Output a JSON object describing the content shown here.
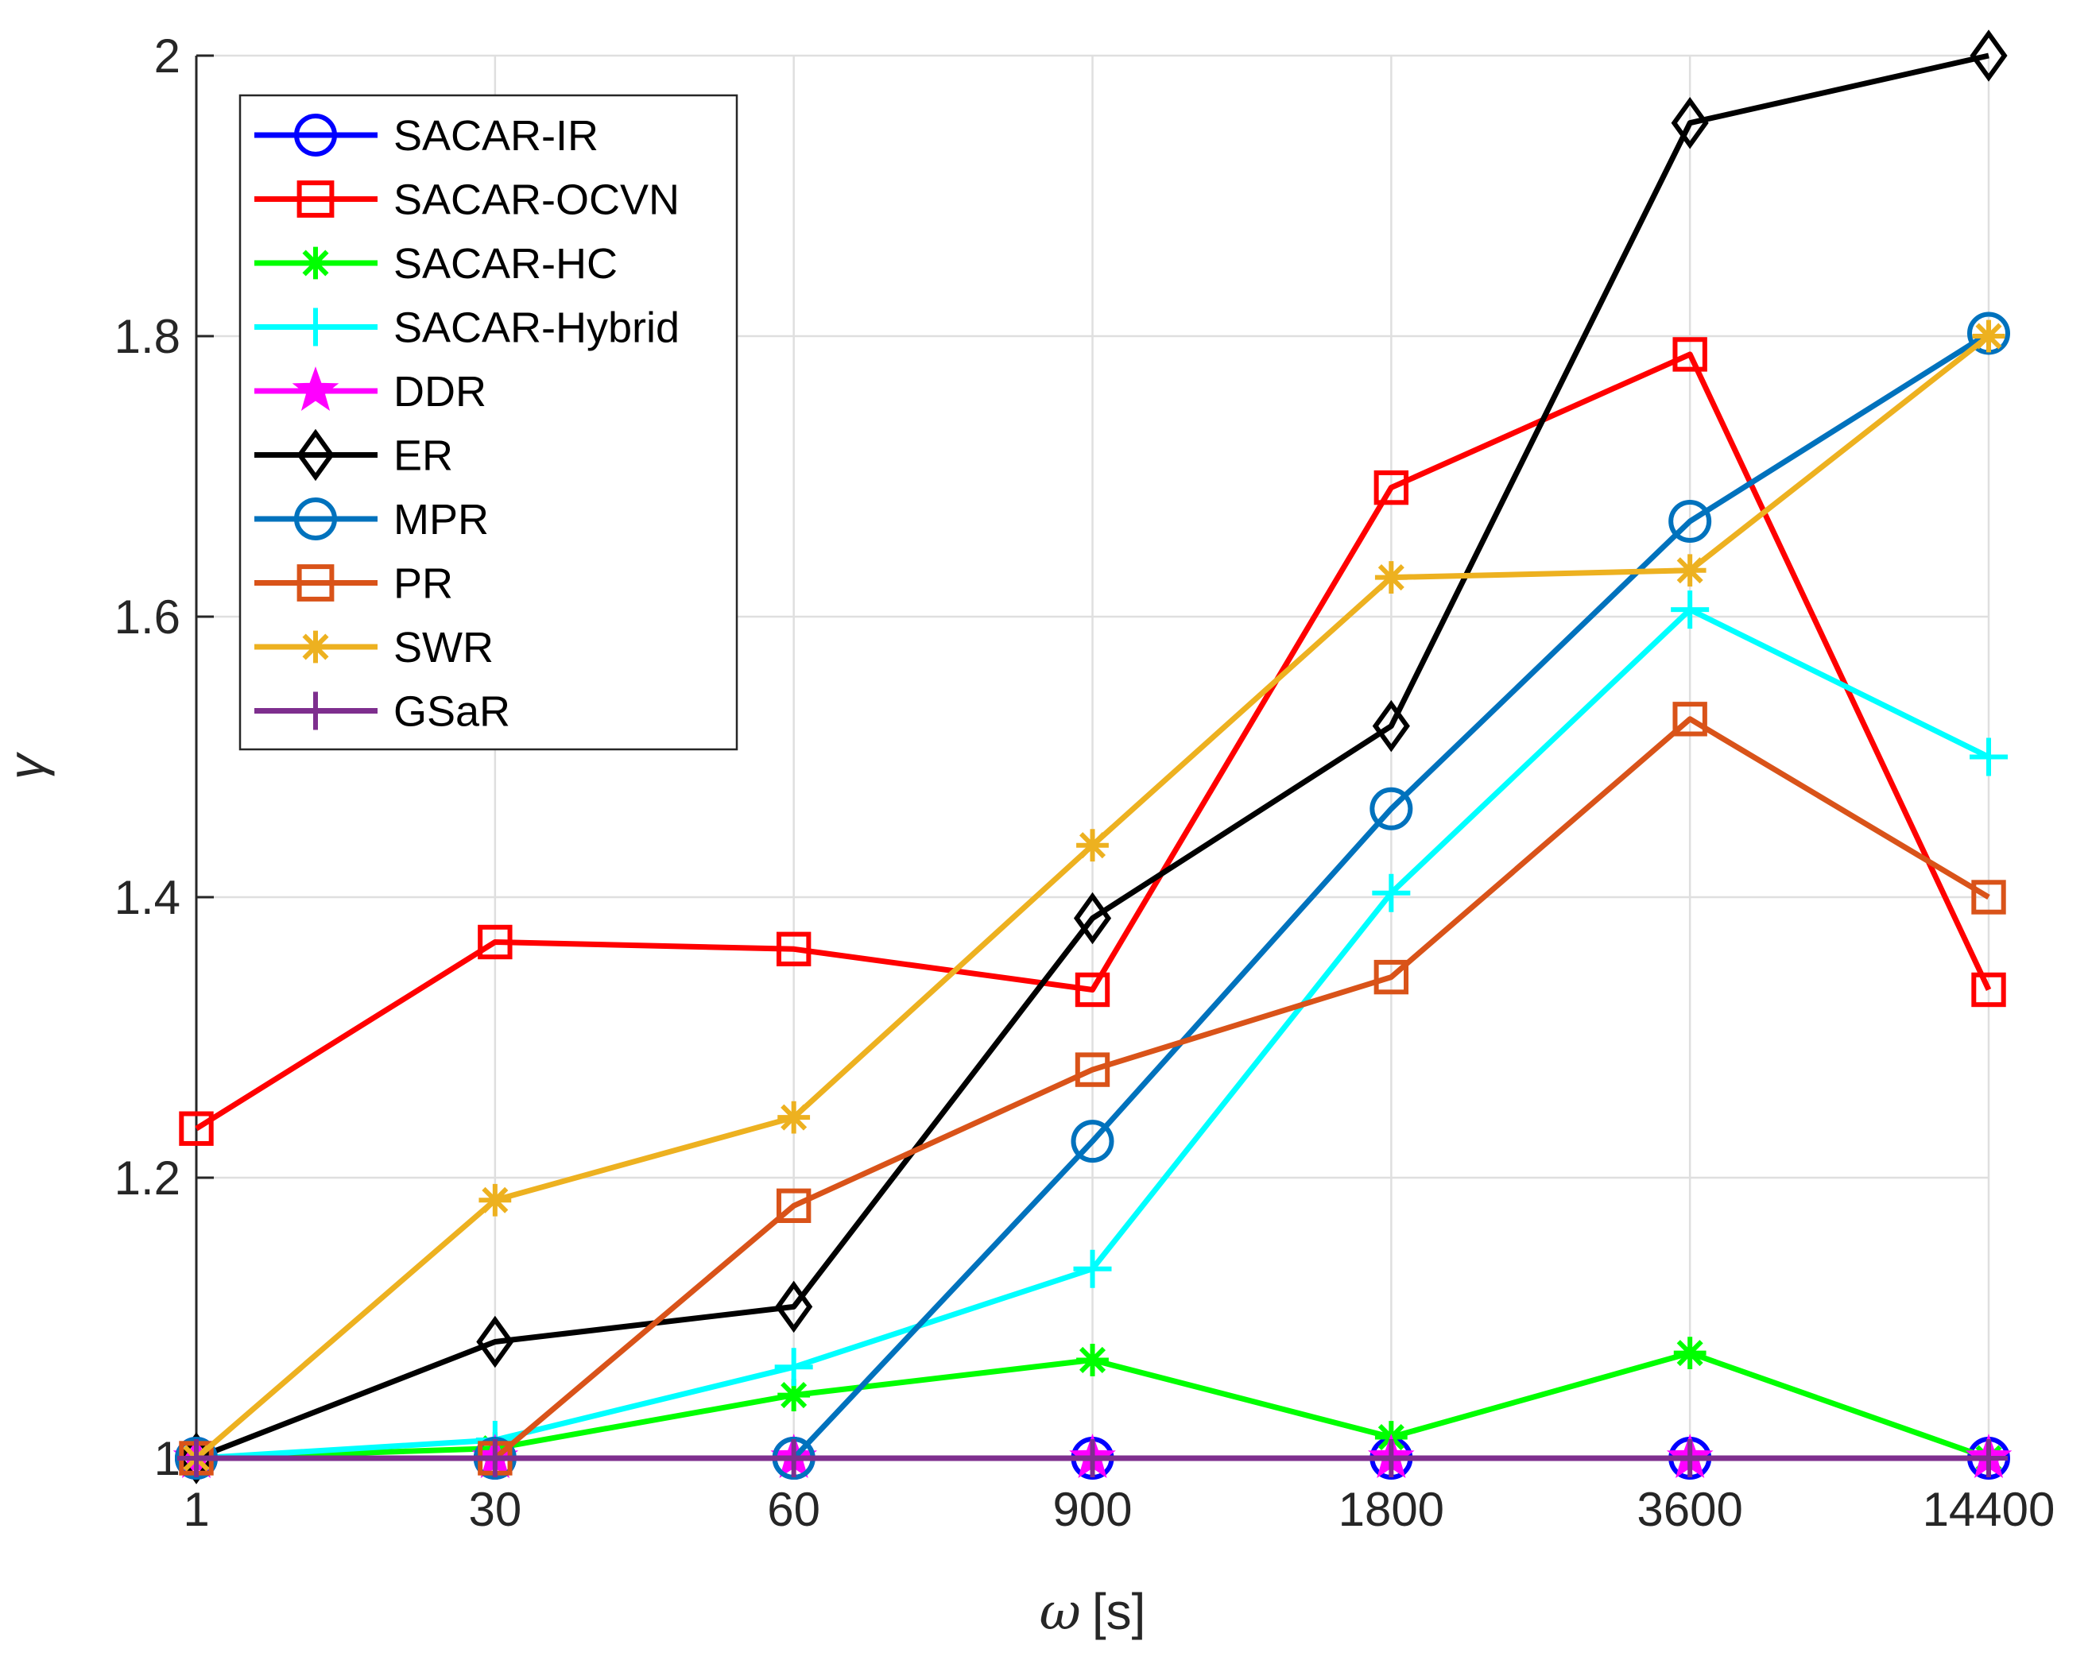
{
  "chart_data": {
    "type": "line",
    "title": "",
    "xlabel_symbol": "ω",
    "xlabel_unit": "[s]",
    "ylabel": "γ",
    "categories": [
      "1",
      "30",
      "60",
      "900",
      "1800",
      "3600",
      "14400"
    ],
    "ylim": [
      1,
      2
    ],
    "yticks": [
      "1",
      "1.2",
      "1.4",
      "1.6",
      "1.8",
      "2"
    ],
    "ytick_values": [
      1,
      1.2,
      1.4,
      1.6,
      1.8,
      2
    ],
    "grid": true,
    "legend_position": "top-left",
    "series": [
      {
        "name": "SACAR-IR",
        "color": "#0000ff",
        "marker": "circle",
        "values": [
          1,
          1,
          1,
          1,
          1,
          1,
          1
        ]
      },
      {
        "name": "SACAR-OCVN",
        "color": "#ff0000",
        "marker": "square",
        "values": [
          1.235,
          1.368,
          1.363,
          1.334,
          1.692,
          1.787,
          1.334
        ]
      },
      {
        "name": "SACAR-HC",
        "color": "#00ff00",
        "marker": "asterisk",
        "values": [
          1,
          1.007,
          1.045,
          1.07,
          1.015,
          1.075,
          1
        ]
      },
      {
        "name": "SACAR-Hybrid",
        "color": "#00ffff",
        "marker": "plus",
        "values": [
          1,
          1.013,
          1.065,
          1.135,
          1.403,
          1.605,
          1.5
        ]
      },
      {
        "name": "DDR",
        "color": "#ff00ff",
        "marker": "star",
        "values": [
          1,
          1,
          1,
          1,
          1,
          1,
          1
        ]
      },
      {
        "name": "ER",
        "color": "#000000",
        "marker": "diamond",
        "values": [
          1,
          1.083,
          1.108,
          1.385,
          1.522,
          1.952,
          2
        ]
      },
      {
        "name": "MPR",
        "color": "#0072bd",
        "marker": "circle",
        "values": [
          1,
          1,
          1,
          1.226,
          1.463,
          1.668,
          1.802
        ]
      },
      {
        "name": "PR",
        "color": "#d95319",
        "marker": "square",
        "values": [
          1,
          1,
          1.18,
          1.277,
          1.343,
          1.527,
          1.4
        ]
      },
      {
        "name": "SWR",
        "color": "#edb120",
        "marker": "asterisk",
        "values": [
          1,
          1.184,
          1.243,
          1.437,
          1.628,
          1.633,
          1.8
        ]
      },
      {
        "name": "GSaR",
        "color": "#7e2f8e",
        "marker": "plus",
        "values": [
          1,
          1,
          1,
          1,
          1,
          1,
          1
        ]
      }
    ]
  }
}
